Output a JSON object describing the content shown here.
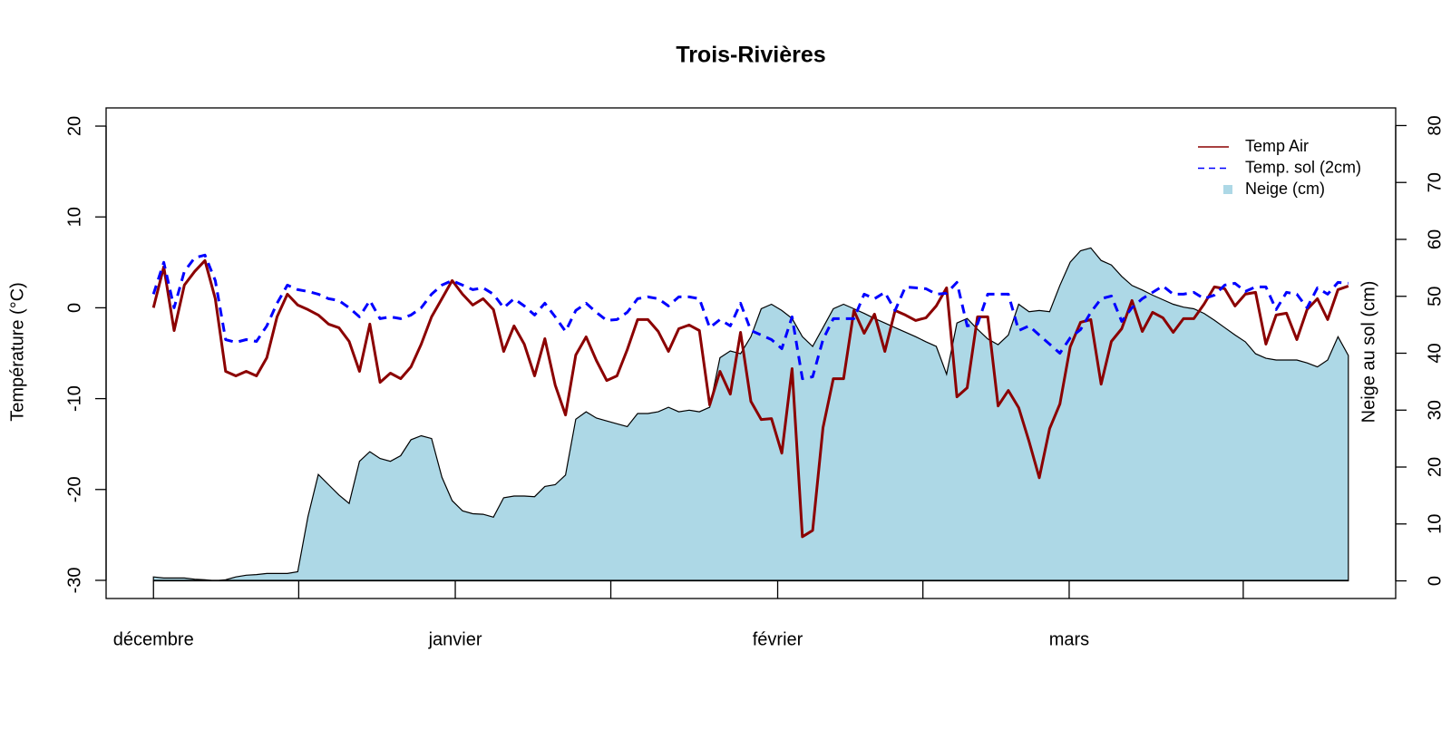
{
  "chart_data": {
    "type": "line",
    "title": "Trois-Rivières",
    "ylabel": "Température (°C)",
    "y2label": "Neige au sol (cm)",
    "xlim": [
      -4.6,
      120.6
    ],
    "ylim": [
      -32,
      22
    ],
    "y2lim": [
      -3.1,
      83.1
    ],
    "yticks": [
      -30,
      -20,
      -10,
      0,
      10,
      20
    ],
    "y2ticks": [
      0,
      10,
      20,
      30,
      40,
      50,
      60,
      70,
      80
    ],
    "xticks": [
      {
        "value": 0,
        "label": "décembre"
      },
      {
        "value": 29.3,
        "label": "janvier"
      },
      {
        "value": 60.6,
        "label": "février"
      },
      {
        "value": 88.9,
        "label": "mars"
      }
    ],
    "xminor_ticks": [
      14.1,
      44.4,
      74.7,
      105.8
    ],
    "legend": "topright",
    "x": [
      0,
      1,
      2,
      3,
      4,
      5,
      6,
      7,
      8,
      9,
      10,
      11,
      12,
      13,
      14,
      15,
      16,
      17,
      18,
      19,
      20,
      21,
      22,
      23,
      24,
      25,
      26,
      27,
      28,
      29,
      30,
      31,
      32,
      33,
      34,
      35,
      36,
      37,
      38,
      39,
      40,
      41,
      42,
      43,
      44,
      45,
      46,
      47,
      48,
      49,
      50,
      51,
      52,
      53,
      54,
      55,
      56,
      57,
      58,
      59,
      60,
      61,
      62,
      63,
      64,
      65,
      66,
      67,
      68,
      69,
      70,
      71,
      72,
      73,
      74,
      75,
      76,
      77,
      78,
      79,
      80,
      81,
      82,
      83,
      84,
      85,
      86,
      87,
      88,
      89,
      90,
      91,
      92,
      93,
      94,
      95,
      96,
      97,
      98,
      99,
      100,
      101,
      102,
      103,
      104,
      105,
      106,
      107,
      108,
      109,
      110,
      111,
      112,
      113,
      114,
      115,
      116
    ],
    "series": [
      {
        "name": "Temp Air",
        "color": "#8b0000",
        "style": "solid",
        "values": [
          0,
          4.5,
          -2.5,
          2.5,
          4,
          5.2,
          1,
          -7,
          -7.5,
          -7,
          -7.5,
          -5.5,
          -1,
          1.5,
          0.3,
          -0.2,
          -0.8,
          -1.8,
          -2.2,
          -3.7,
          -7,
          -1.8,
          -8.2,
          -7.2,
          -7.8,
          -6.5,
          -4,
          -1,
          1,
          3,
          1.5,
          0.3,
          1,
          -0.2,
          -4.8,
          -2,
          -4,
          -7.5,
          -3.4,
          -8.5,
          -11.8,
          -5.2,
          -3.2,
          -5.8,
          -8,
          -7.5,
          -4.6,
          -1.3,
          -1.3,
          -2.6,
          -4.8,
          -2.3,
          -1.9,
          -2.5,
          -10.7,
          -7,
          -9.5,
          -2.7,
          -10.3,
          -12.3,
          -12.2,
          -16,
          -6.7,
          -25.2,
          -24.5,
          -13.2,
          -7.8,
          -7.8,
          -0.3,
          -2.8,
          -0.7,
          -4.8,
          -0.3,
          -0.8,
          -1.4,
          -1.1,
          0.2,
          2.2,
          -9.8,
          -8.8,
          -1,
          -1,
          -10.8,
          -9.1,
          -11,
          -14.7,
          -18.7,
          -13.3,
          -10.6,
          -4.3,
          -1.6,
          -1.3,
          -8.4,
          -3.7,
          -2.3,
          0.8,
          -2.6,
          -0.5,
          -1.1,
          -2.7,
          -1.2,
          -1.2,
          0.4,
          2.3,
          2.1,
          0.2,
          1.5,
          1.7,
          -4,
          -0.8,
          -0.6,
          -3.5,
          -0.2,
          1,
          -1.3,
          2,
          2.4
        ]
      },
      {
        "name": "Temp. sol (2cm)",
        "color": "#0000ff",
        "style": "dashed",
        "values": [
          1.5,
          5,
          0,
          4,
          5.5,
          5.8,
          3,
          -3.5,
          -3.8,
          -3.5,
          -3.7,
          -2,
          0.5,
          2.5,
          2,
          1.8,
          1.5,
          1,
          0.8,
          0,
          -1,
          0.8,
          -1.2,
          -1,
          -1.2,
          -0.8,
          0,
          1.5,
          2.5,
          3,
          2.5,
          2,
          2.2,
          1.5,
          0,
          1,
          0.2,
          -0.8,
          0.5,
          -1,
          -2.6,
          -0.3,
          0.5,
          -0.5,
          -1.4,
          -1.3,
          -0.5,
          1,
          1.2,
          1,
          0.2,
          1.2,
          1.2,
          1,
          -2.2,
          -1.3,
          -2,
          0.5,
          -2.5,
          -3,
          -3.5,
          -4.5,
          -1,
          -7.8,
          -7.6,
          -3.5,
          -1.2,
          -1.2,
          -1.2,
          1.5,
          1,
          1.7,
          -0.3,
          2.3,
          2.2,
          2.1,
          1.5,
          1.6,
          2.8,
          -2,
          -1.8,
          1.5,
          1.5,
          1.5,
          -2.5,
          -2,
          -3,
          -4,
          -5,
          -3.3,
          -2.4,
          -0.5,
          1,
          1.3,
          -1.5,
          0,
          1,
          1.7,
          2.4,
          1.5,
          1.5,
          1.7,
          1,
          1.4,
          2.5,
          2.7,
          1.8,
          2.3,
          2.3,
          -0.2,
          1.7,
          1.5,
          0,
          2.2,
          1.5,
          2.8,
          2.7
        ]
      },
      {
        "name": "Neige (cm)",
        "color": "#add8e6",
        "style": "area",
        "axis": "y2",
        "values": [
          0.7,
          0.5,
          0.5,
          0.5,
          0.3,
          0.2,
          0,
          0.2,
          0.7,
          1,
          1.1,
          1.3,
          1.3,
          1.3,
          1.6,
          11.3,
          18.7,
          16.9,
          15.1,
          13.6,
          21,
          22.7,
          21.5,
          21,
          22,
          24.8,
          25.5,
          25,
          18.2,
          14.1,
          12.3,
          11.8,
          11.7,
          11.2,
          14.6,
          14.9,
          14.9,
          14.8,
          16.6,
          16.9,
          18.6,
          28.4,
          29.7,
          28.6,
          28.1,
          27.6,
          27.1,
          29.4,
          29.4,
          29.7,
          30.5,
          29.7,
          30,
          29.7,
          30.5,
          39.2,
          40.4,
          39.9,
          42.9,
          47.8,
          48.6,
          47.5,
          46.1,
          42.9,
          41.2,
          44.5,
          47.8,
          48.6,
          47.8,
          47,
          46.1,
          45.3,
          44.5,
          43.7,
          42.9,
          42,
          41.2,
          36.3,
          45.3,
          46.1,
          44.2,
          42.5,
          41.5,
          43.2,
          48.6,
          47.3,
          47.5,
          47.3,
          51.9,
          56,
          58,
          58.5,
          56.3,
          55.5,
          53.5,
          51.9,
          51.1,
          50.2,
          49.4,
          48.6,
          48.1,
          47.8,
          47,
          45.8,
          44.5,
          43.2,
          42,
          39.9,
          39.1,
          38.8,
          38.8,
          38.8,
          38.3,
          37.6,
          38.8,
          42.9,
          39.6
        ]
      }
    ]
  }
}
